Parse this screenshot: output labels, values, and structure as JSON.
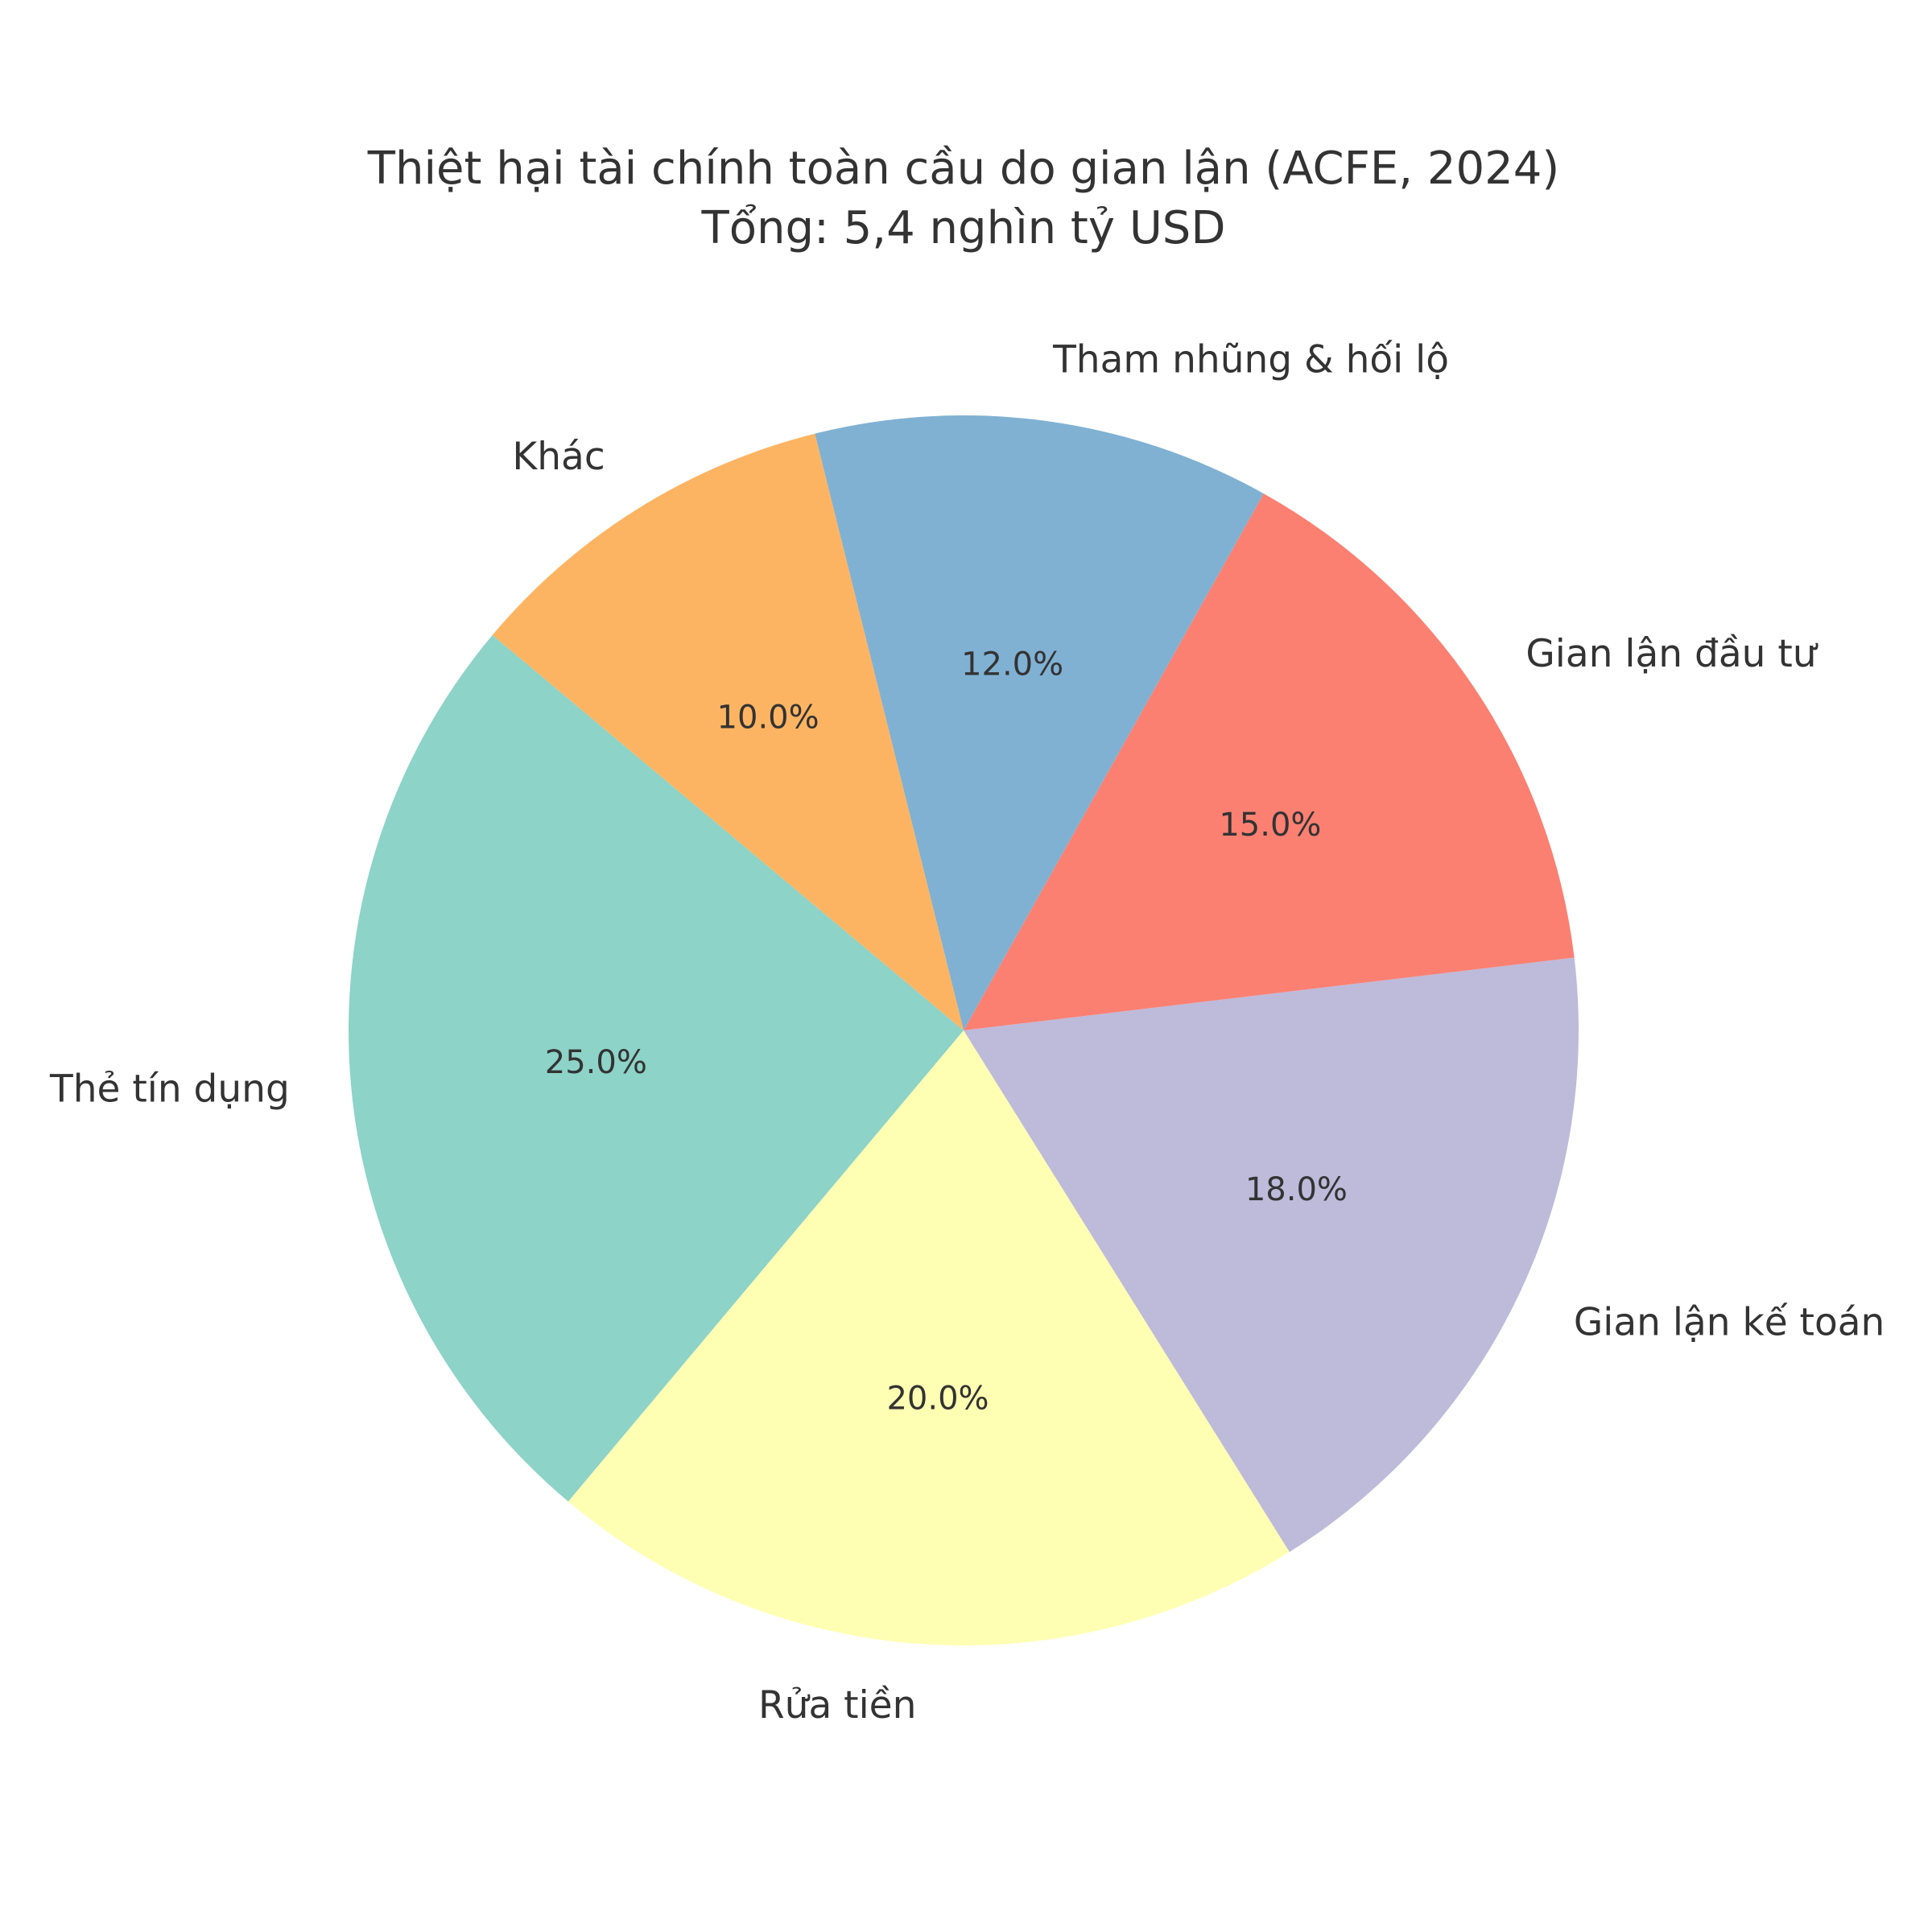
{
  "chart_data": {
    "type": "pie",
    "title": "Thiệt hại tài chính toàn cầu do gian lận (ACFE, 2024)",
    "subtitle": "Tổng: 5,4 nghìn tỷ USD",
    "slices": [
      {
        "label": "Thẻ tín dụng",
        "value": 25.0,
        "pct_text": "25.0%",
        "color": "#8dd3c7"
      },
      {
        "label": "Rửa tiền",
        "value": 20.0,
        "pct_text": "20.0%",
        "color": "#ffffb3"
      },
      {
        "label": "Gian lận kế toán",
        "value": 18.0,
        "pct_text": "18.0%",
        "color": "#bebada"
      },
      {
        "label": "Gian lận đầu tư",
        "value": 15.0,
        "pct_text": "15.0%",
        "color": "#fb8072"
      },
      {
        "label": "Tham nhũng & hối lộ",
        "value": 12.0,
        "pct_text": "12.0%",
        "color": "#80b1d3"
      },
      {
        "label": "Khác",
        "value": 10.0,
        "pct_text": "10.0%",
        "color": "#fdb462"
      }
    ],
    "start_angle_deg": 140,
    "direction": "counterclockwise"
  }
}
